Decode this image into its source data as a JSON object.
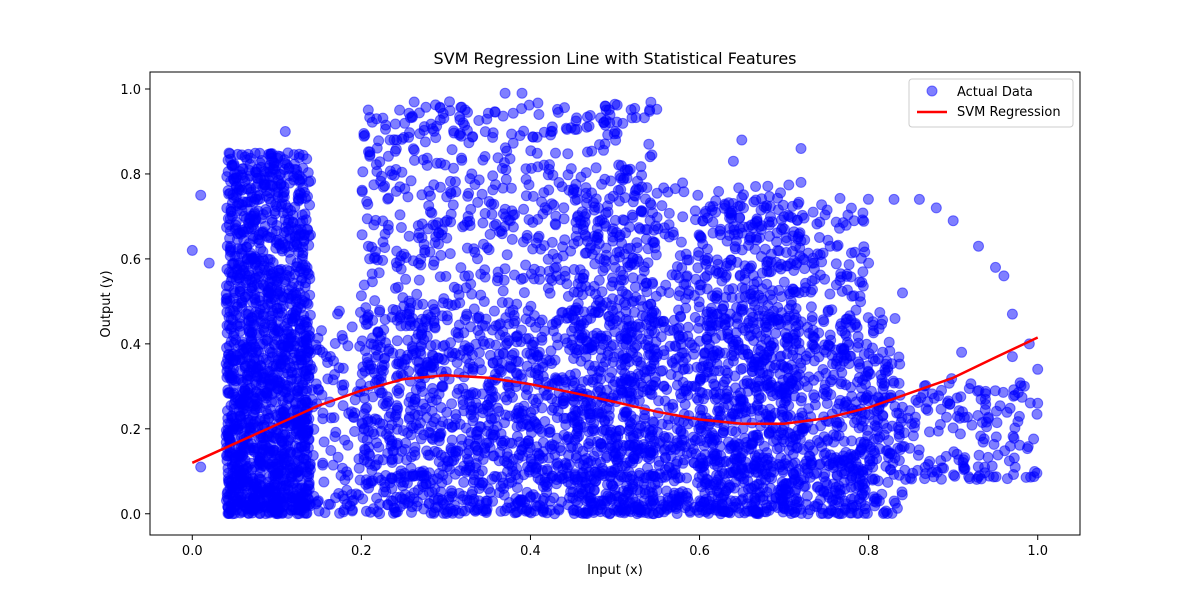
{
  "chart_data": {
    "type": "scatter",
    "title": "SVM Regression Line with Statistical Features",
    "xlabel": "Input (x)",
    "ylabel": "Output (y)",
    "xlim": [
      -0.05,
      1.05
    ],
    "ylim": [
      -0.05,
      1.04
    ],
    "xticks": [
      0.0,
      0.2,
      0.4,
      0.6,
      0.8,
      1.0
    ],
    "xtick_labels": [
      "0.0",
      "0.2",
      "0.4",
      "0.6",
      "0.8",
      "1.0"
    ],
    "yticks": [
      0.0,
      0.2,
      0.4,
      0.6,
      0.8,
      1.0
    ],
    "ytick_labels": [
      "0.0",
      "0.2",
      "0.4",
      "0.6",
      "0.8",
      "1.0"
    ],
    "grid": false,
    "legend_position": "top-right",
    "series": [
      {
        "name": "Actual Data",
        "kind": "scatter",
        "color": "#0000ff",
        "alpha": 0.5,
        "dense_regions": [
          {
            "x": [
              0.04,
              0.84
            ],
            "y": [
              0.0,
              0.48
            ],
            "density": "very high"
          },
          {
            "x": [
              0.04,
              0.14
            ],
            "y": [
              0.0,
              0.85
            ],
            "density": "very high"
          },
          {
            "x": [
              0.2,
              0.55
            ],
            "y": [
              0.0,
              0.97
            ],
            "density": "very high"
          },
          {
            "x": [
              0.45,
              0.72
            ],
            "y": [
              0.0,
              0.78
            ],
            "density": "high"
          },
          {
            "x": [
              0.6,
              0.8
            ],
            "y": [
              0.0,
              0.75
            ],
            "density": "high"
          },
          {
            "x": [
              0.78,
              1.0
            ],
            "y": [
              0.08,
              0.32
            ],
            "density": "medium"
          }
        ],
        "outliers": [
          {
            "x": 0.0,
            "y": 0.62
          },
          {
            "x": 0.01,
            "y": 0.75
          },
          {
            "x": 0.02,
            "y": 0.59
          },
          {
            "x": 0.01,
            "y": 0.11
          },
          {
            "x": 0.05,
            "y": 0.8
          },
          {
            "x": 0.11,
            "y": 0.9
          },
          {
            "x": 0.37,
            "y": 0.99
          },
          {
            "x": 0.39,
            "y": 0.99
          },
          {
            "x": 0.41,
            "y": 0.94
          },
          {
            "x": 0.5,
            "y": 0.9
          },
          {
            "x": 0.54,
            "y": 0.87
          },
          {
            "x": 0.64,
            "y": 0.83
          },
          {
            "x": 0.65,
            "y": 0.88
          },
          {
            "x": 0.72,
            "y": 0.86
          },
          {
            "x": 0.72,
            "y": 0.78
          },
          {
            "x": 0.83,
            "y": 0.74
          },
          {
            "x": 0.86,
            "y": 0.74
          },
          {
            "x": 0.88,
            "y": 0.72
          },
          {
            "x": 0.9,
            "y": 0.69
          },
          {
            "x": 0.93,
            "y": 0.63
          },
          {
            "x": 0.96,
            "y": 0.56
          },
          {
            "x": 0.97,
            "y": 0.47
          },
          {
            "x": 0.95,
            "y": 0.58
          },
          {
            "x": 0.99,
            "y": 0.4
          },
          {
            "x": 1.0,
            "y": 0.34
          },
          {
            "x": 1.0,
            "y": 0.26
          },
          {
            "x": 0.97,
            "y": 0.37
          },
          {
            "x": 0.91,
            "y": 0.38
          },
          {
            "x": 0.84,
            "y": 0.52
          },
          {
            "x": 0.8,
            "y": 0.59
          }
        ]
      },
      {
        "name": "SVM Regression",
        "kind": "line",
        "color": "#ff0000",
        "x": [
          0.0,
          0.05,
          0.1,
          0.15,
          0.2,
          0.25,
          0.3,
          0.35,
          0.4,
          0.45,
          0.5,
          0.55,
          0.6,
          0.65,
          0.7,
          0.75,
          0.8,
          0.85,
          0.9,
          0.95,
          1.0
        ],
        "y": [
          0.12,
          0.165,
          0.21,
          0.255,
          0.29,
          0.317,
          0.326,
          0.32,
          0.305,
          0.285,
          0.263,
          0.24,
          0.222,
          0.212,
          0.212,
          0.225,
          0.25,
          0.285,
          0.32,
          0.368,
          0.415
        ]
      }
    ]
  }
}
